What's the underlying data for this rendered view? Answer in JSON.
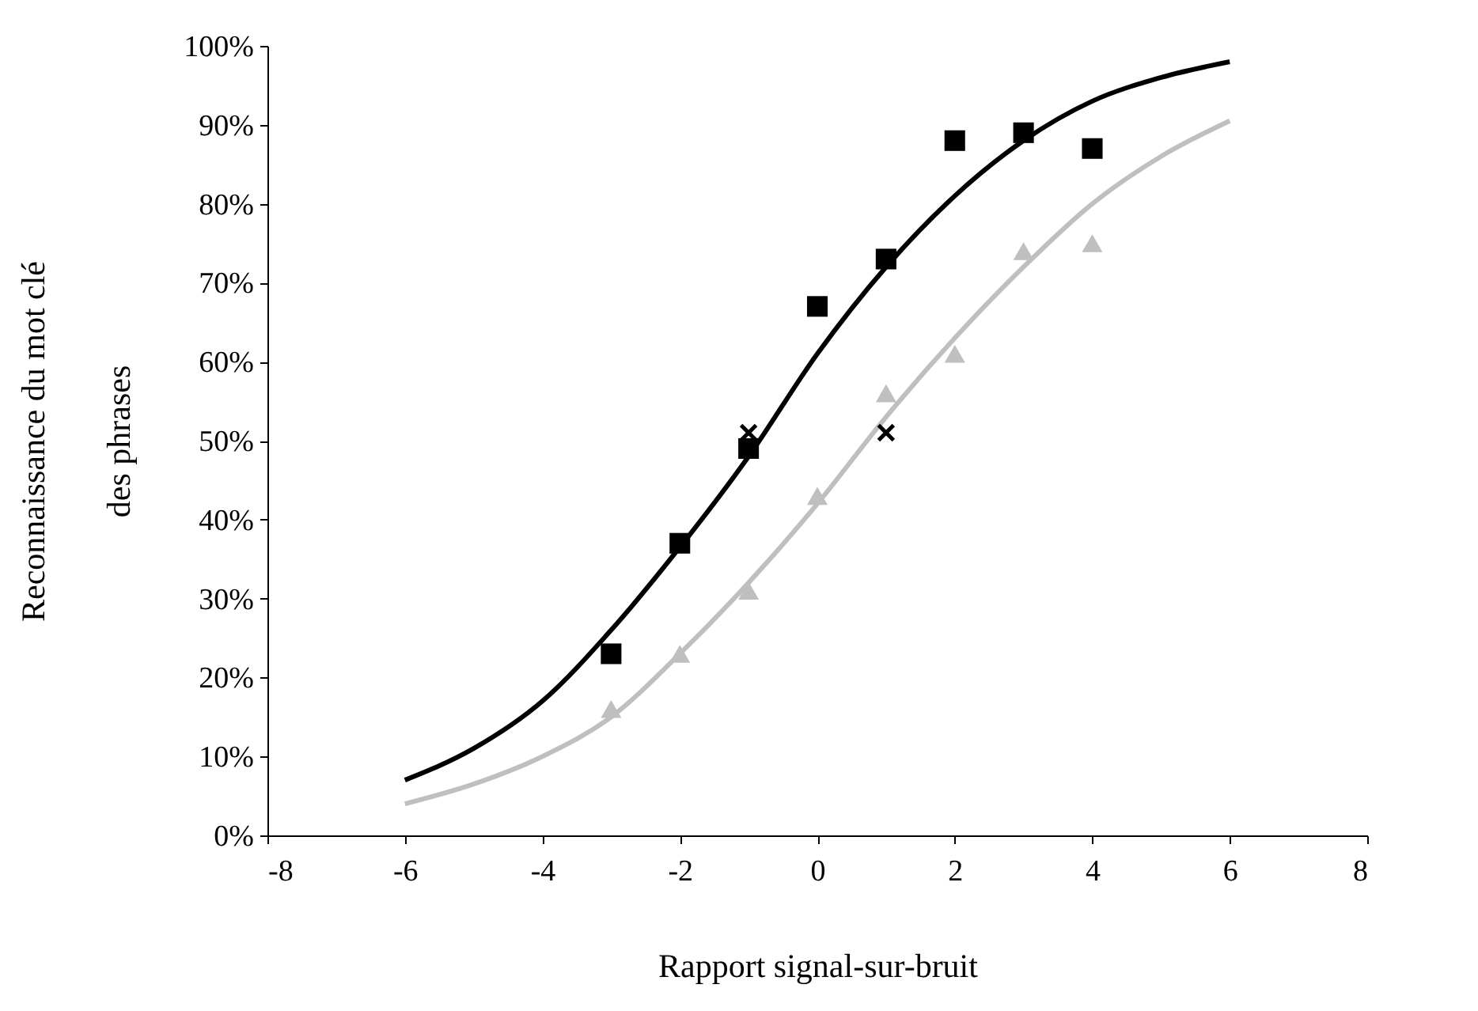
{
  "chart_data": {
    "type": "scatter",
    "xlabel": "Rapport signal-sur-bruit",
    "ylabel": "Reconnaissance du mot clé\ndes phrases",
    "xlim": [
      -8,
      8
    ],
    "xticks": [
      -8,
      -6,
      -4,
      -2,
      0,
      2,
      4,
      6,
      8
    ],
    "ylim": [
      0,
      100
    ],
    "yticks": [
      {
        "value": 0,
        "label": "0%"
      },
      {
        "value": 10,
        "label": "10%"
      },
      {
        "value": 20,
        "label": "20%"
      },
      {
        "value": 30,
        "label": "30%"
      },
      {
        "value": 40,
        "label": "40%"
      },
      {
        "value": 50,
        "label": "50%"
      },
      {
        "value": 60,
        "label": "60%"
      },
      {
        "value": 70,
        "label": "70%"
      },
      {
        "value": 80,
        "label": "80%"
      },
      {
        "value": 90,
        "label": "90%"
      },
      {
        "value": 100,
        "label": "100%"
      }
    ],
    "grid": false,
    "series": [
      {
        "type": "line",
        "color": "#000000",
        "marker": "none",
        "x": [
          -6,
          -5,
          -4,
          -3,
          -2,
          -1,
          0,
          1,
          2,
          3,
          4,
          5,
          6
        ],
        "values": [
          7,
          11,
          17,
          26,
          36.5,
          48,
          61,
          72,
          81,
          88,
          93,
          96,
          98
        ]
      },
      {
        "type": "line",
        "color": "#bfbfbf",
        "marker": "none",
        "x": [
          -6,
          -5,
          -4,
          -3,
          -2,
          -1,
          0,
          1,
          2,
          3,
          4,
          5,
          6
        ],
        "values": [
          4,
          6.5,
          10,
          15,
          23,
          32,
          42,
          53,
          63,
          72,
          80,
          86,
          90.5
        ]
      },
      {
        "color": "#000000",
        "marker": "square",
        "x": [
          -3,
          -2,
          -1,
          0,
          1,
          2,
          3,
          4
        ],
        "values": [
          23,
          37,
          49,
          67,
          73,
          88,
          89,
          87
        ]
      },
      {
        "color": "#bfbfbf",
        "marker": "triangle",
        "x": [
          -3,
          -2,
          -1,
          0,
          1,
          2,
          3,
          4
        ],
        "values": [
          16,
          23,
          31,
          43,
          56,
          61,
          74,
          75
        ]
      },
      {
        "color": "#000000",
        "marker": "cross",
        "x": [
          -1,
          1
        ],
        "values": [
          51,
          51
        ]
      }
    ]
  }
}
